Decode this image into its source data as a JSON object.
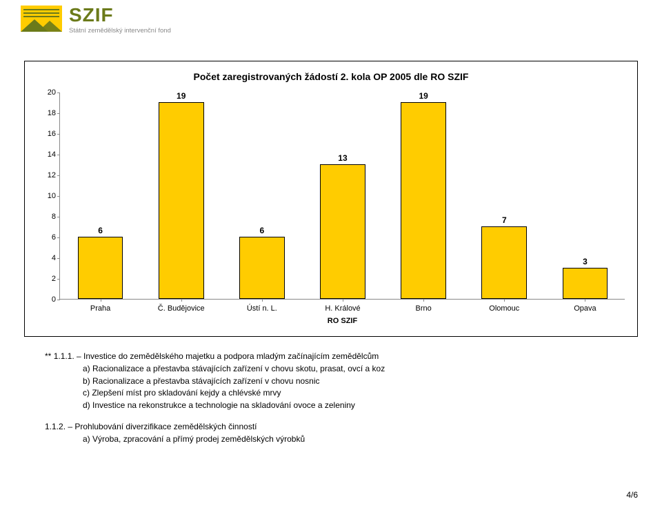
{
  "header": {
    "logo_main": "SZIF",
    "logo_sub": "Státní zemědělský intervenční fond",
    "logo_bg": "#ffcc00",
    "logo_line_color": "#6b7a1a"
  },
  "chart": {
    "type": "bar",
    "title": "Počet zaregistrovaných žádostí 2. kola OP 2005 dle RO SZIF",
    "axis_title": "RO SZIF",
    "categories": [
      "Praha",
      "Č. Budějovice",
      "Ústí n. L.",
      "H. Králové",
      "Brno",
      "Olomouc",
      "Opava"
    ],
    "values": [
      6,
      19,
      6,
      13,
      19,
      7,
      3
    ],
    "ylim": [
      0,
      20
    ],
    "ytick_step": 2,
    "bar_color": "#ffcc00",
    "bar_border": "#000000",
    "bar_width_pct": 8,
    "background_color": "#ffffff",
    "axis_color": "#888888",
    "title_fontsize": 14,
    "label_fontsize": 11,
    "value_fontsize": 12
  },
  "body": {
    "marker": "**",
    "item1_title": "1.1.1. – Investice do zemědělského majetku a podpora mladým začínajícím zemědělcům",
    "item1_lines": [
      "a) Racionalizace a přestavba stávajících zařízení v chovu skotu, prasat, ovcí a koz",
      "b) Racionalizace a přestavba stávajících zařízení v chovu nosnic",
      "c) Zlepšení míst pro skladování kejdy a chlévské mrvy",
      "d) Investice na rekonstrukce a technologie na skladování ovoce a zeleniny"
    ],
    "item2_title": "1.1.2. – Prohlubování diverzifikace zemědělských činností",
    "item2_lines": [
      "a) Výroba, zpracování a přímý prodej zemědělských výrobků"
    ]
  },
  "footer": {
    "page": "4/6"
  }
}
